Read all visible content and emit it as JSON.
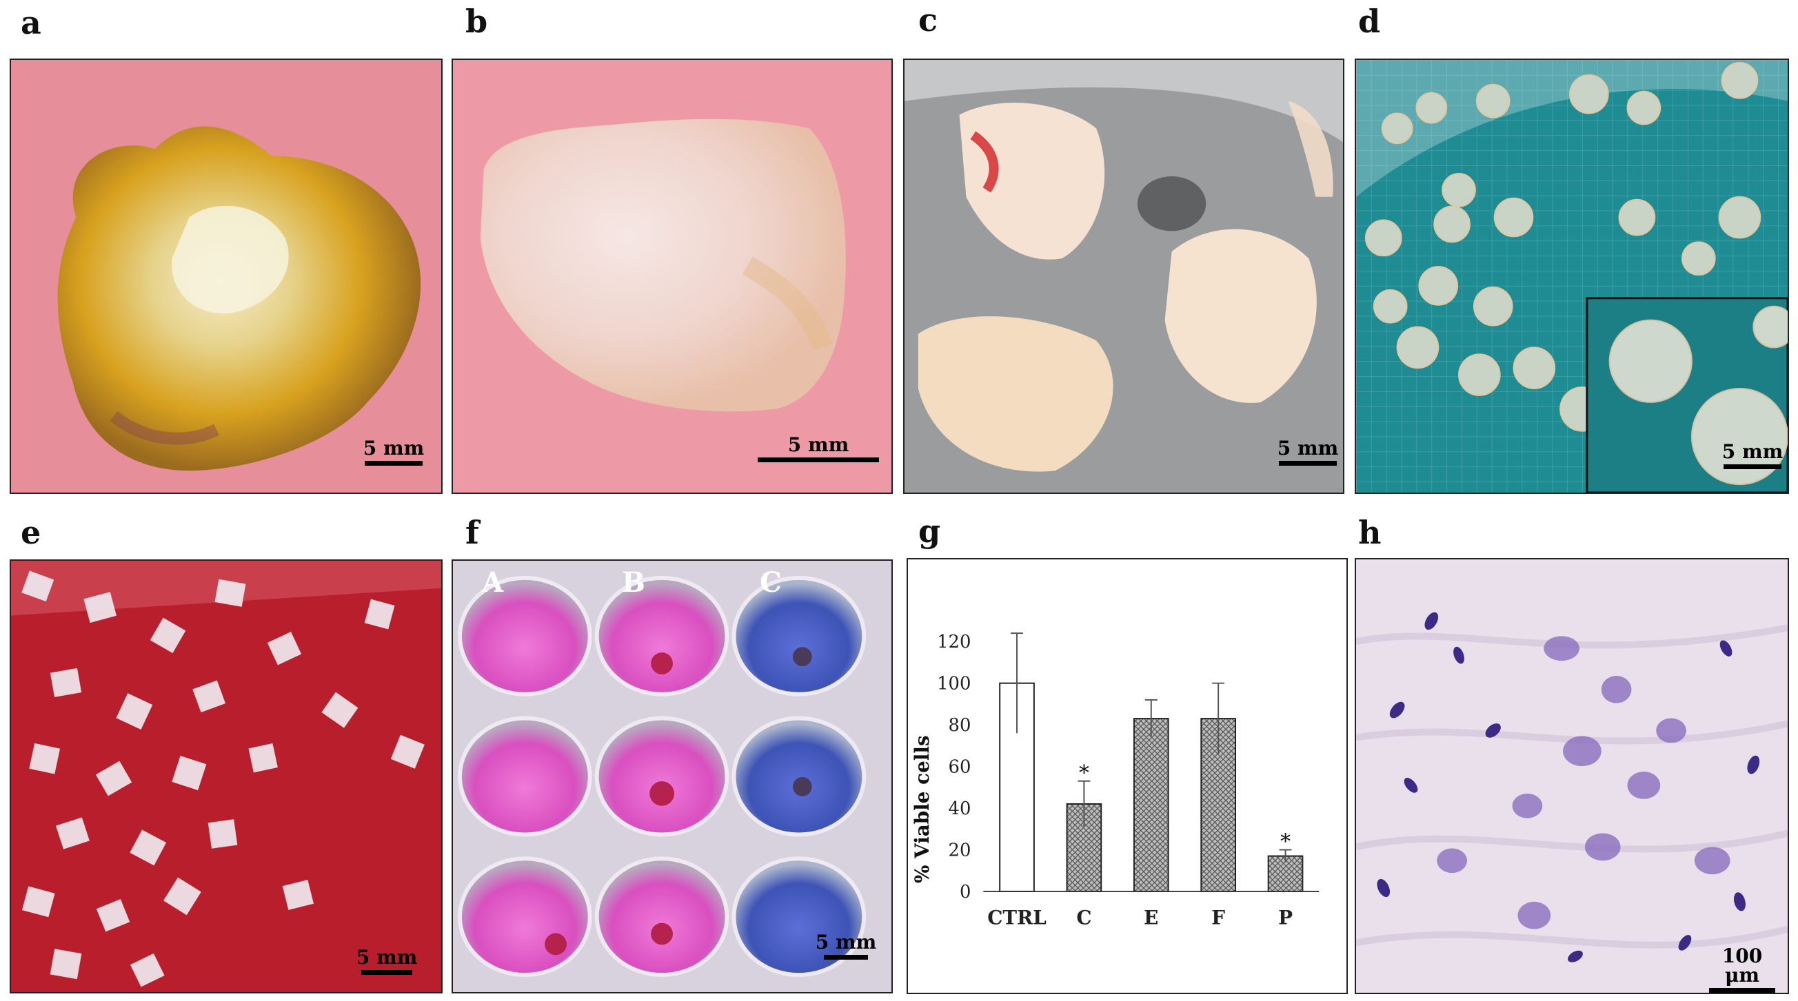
{
  "panels": {
    "a": {
      "label": "a",
      "scale": "5 mm"
    },
    "b": {
      "label": "b",
      "scale": "5 mm"
    },
    "c": {
      "label": "c",
      "scale": "5 mm"
    },
    "d": {
      "label": "d",
      "scale": "5 mm"
    },
    "e": {
      "label": "e",
      "scale": "5 mm"
    },
    "f": {
      "label": "f",
      "scale": "5 mm",
      "wells": [
        "A",
        "B",
        "C"
      ]
    },
    "g": {
      "label": "g"
    },
    "h": {
      "label": "h",
      "scale": "100 μm"
    }
  },
  "chart_data": {
    "type": "bar",
    "categories": [
      "CTRL",
      "C",
      "E",
      "F",
      "P"
    ],
    "values": [
      100,
      42,
      83,
      83,
      17
    ],
    "errors": [
      24,
      11,
      9,
      17,
      3
    ],
    "significant": [
      false,
      true,
      false,
      false,
      true
    ],
    "significance_marker": "*",
    "ylabel": "% Viable cells",
    "ylim": [
      0,
      120
    ],
    "yticks": [
      0,
      20,
      40,
      60,
      80,
      100,
      120
    ],
    "colors": {
      "control": "#ffffff",
      "treated_pattern": "#8a8a8a"
    }
  }
}
